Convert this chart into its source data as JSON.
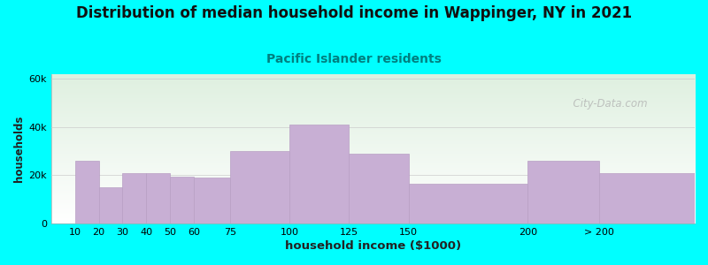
{
  "title": "Distribution of median household income in Wappinger, NY in 2021",
  "subtitle": "Pacific Islander residents",
  "xlabel": "household income ($1000)",
  "ylabel": "households",
  "background_color": "#00FFFF",
  "plot_bg_top": "#dff0e0",
  "plot_bg_bottom": "#ffffff",
  "bar_color": "#c8afd4",
  "bar_edge_color": "#b89fc4",
  "title_fontsize": 12,
  "subtitle_fontsize": 10,
  "subtitle_color": "#008080",
  "watermark": "  City-Data.com",
  "bin_left": [
    0,
    10,
    20,
    30,
    40,
    50,
    60,
    75,
    100,
    125,
    150,
    200,
    230
  ],
  "bin_right": [
    10,
    20,
    30,
    40,
    50,
    60,
    75,
    100,
    125,
    150,
    200,
    230,
    270
  ],
  "values": [
    0,
    26000,
    15000,
    21000,
    21000,
    19500,
    19000,
    30000,
    41000,
    29000,
    16500,
    26000,
    21000
  ],
  "xtick_pos": [
    10,
    20,
    30,
    40,
    50,
    60,
    75,
    100,
    125,
    150,
    200,
    230
  ],
  "xtick_labels": [
    "10",
    "20",
    "30",
    "40",
    "50",
    "60",
    "75",
    "100",
    "125",
    "150",
    "200",
    "> 200"
  ],
  "ylim": [
    0,
    62000
  ],
  "yticks": [
    0,
    20000,
    40000,
    60000
  ],
  "ytick_labels": [
    "0",
    "20k",
    "40k",
    "60k"
  ]
}
